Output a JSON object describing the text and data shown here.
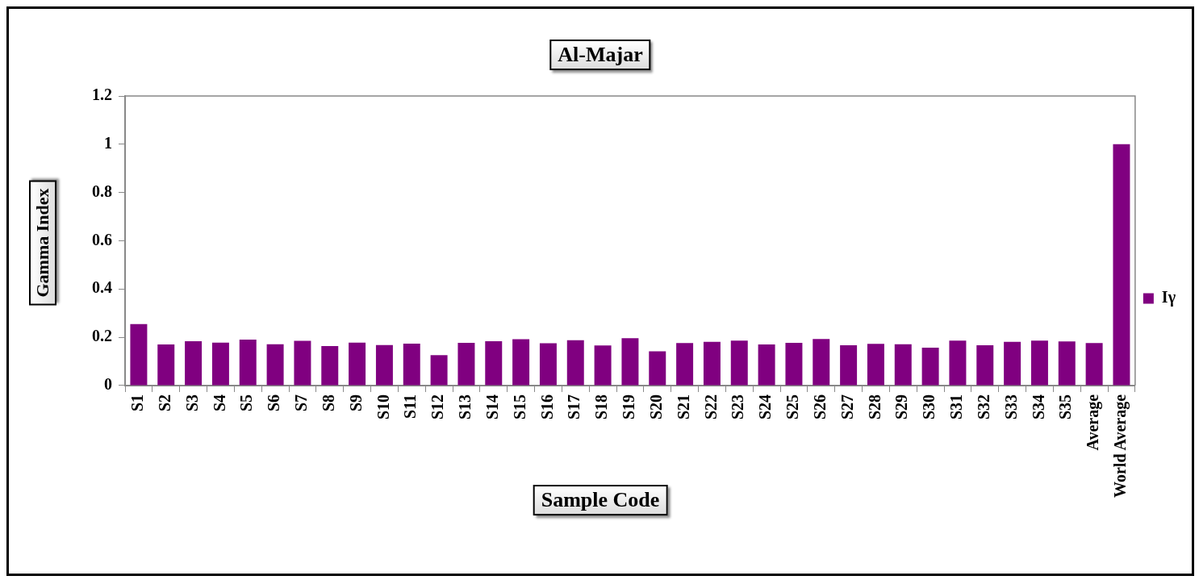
{
  "chart_data": {
    "type": "bar",
    "title": "Al-Majar",
    "xlabel": "Sample Code",
    "ylabel": "Gamma Index",
    "categories": [
      "S1",
      "S2",
      "S3",
      "S4",
      "S5",
      "S6",
      "S7",
      "S8",
      "S9",
      "S10",
      "S11",
      "S12",
      "S13",
      "S14",
      "S15",
      "S16",
      "S17",
      "S18",
      "S19",
      "S20",
      "S21",
      "S22",
      "S23",
      "S24",
      "S25",
      "S26",
      "S27",
      "S28",
      "S29",
      "S30",
      "S31",
      "S32",
      "S33",
      "S34",
      "S35",
      "Average",
      "World Average"
    ],
    "series": [
      {
        "name": "Iγ",
        "color": "#800080",
        "values": [
          0.255,
          0.17,
          0.184,
          0.178,
          0.19,
          0.171,
          0.185,
          0.164,
          0.178,
          0.168,
          0.174,
          0.126,
          0.177,
          0.184,
          0.192,
          0.175,
          0.188,
          0.166,
          0.196,
          0.142,
          0.176,
          0.181,
          0.186,
          0.17,
          0.177,
          0.193,
          0.167,
          0.173,
          0.171,
          0.157,
          0.186,
          0.167,
          0.181,
          0.186,
          0.183,
          0.176,
          1.0
        ]
      }
    ],
    "ylim": [
      0,
      1.2
    ],
    "yticks": [
      0,
      0.2,
      0.4,
      0.6,
      0.8,
      1,
      1.2
    ],
    "grid": false,
    "legend": "right"
  }
}
